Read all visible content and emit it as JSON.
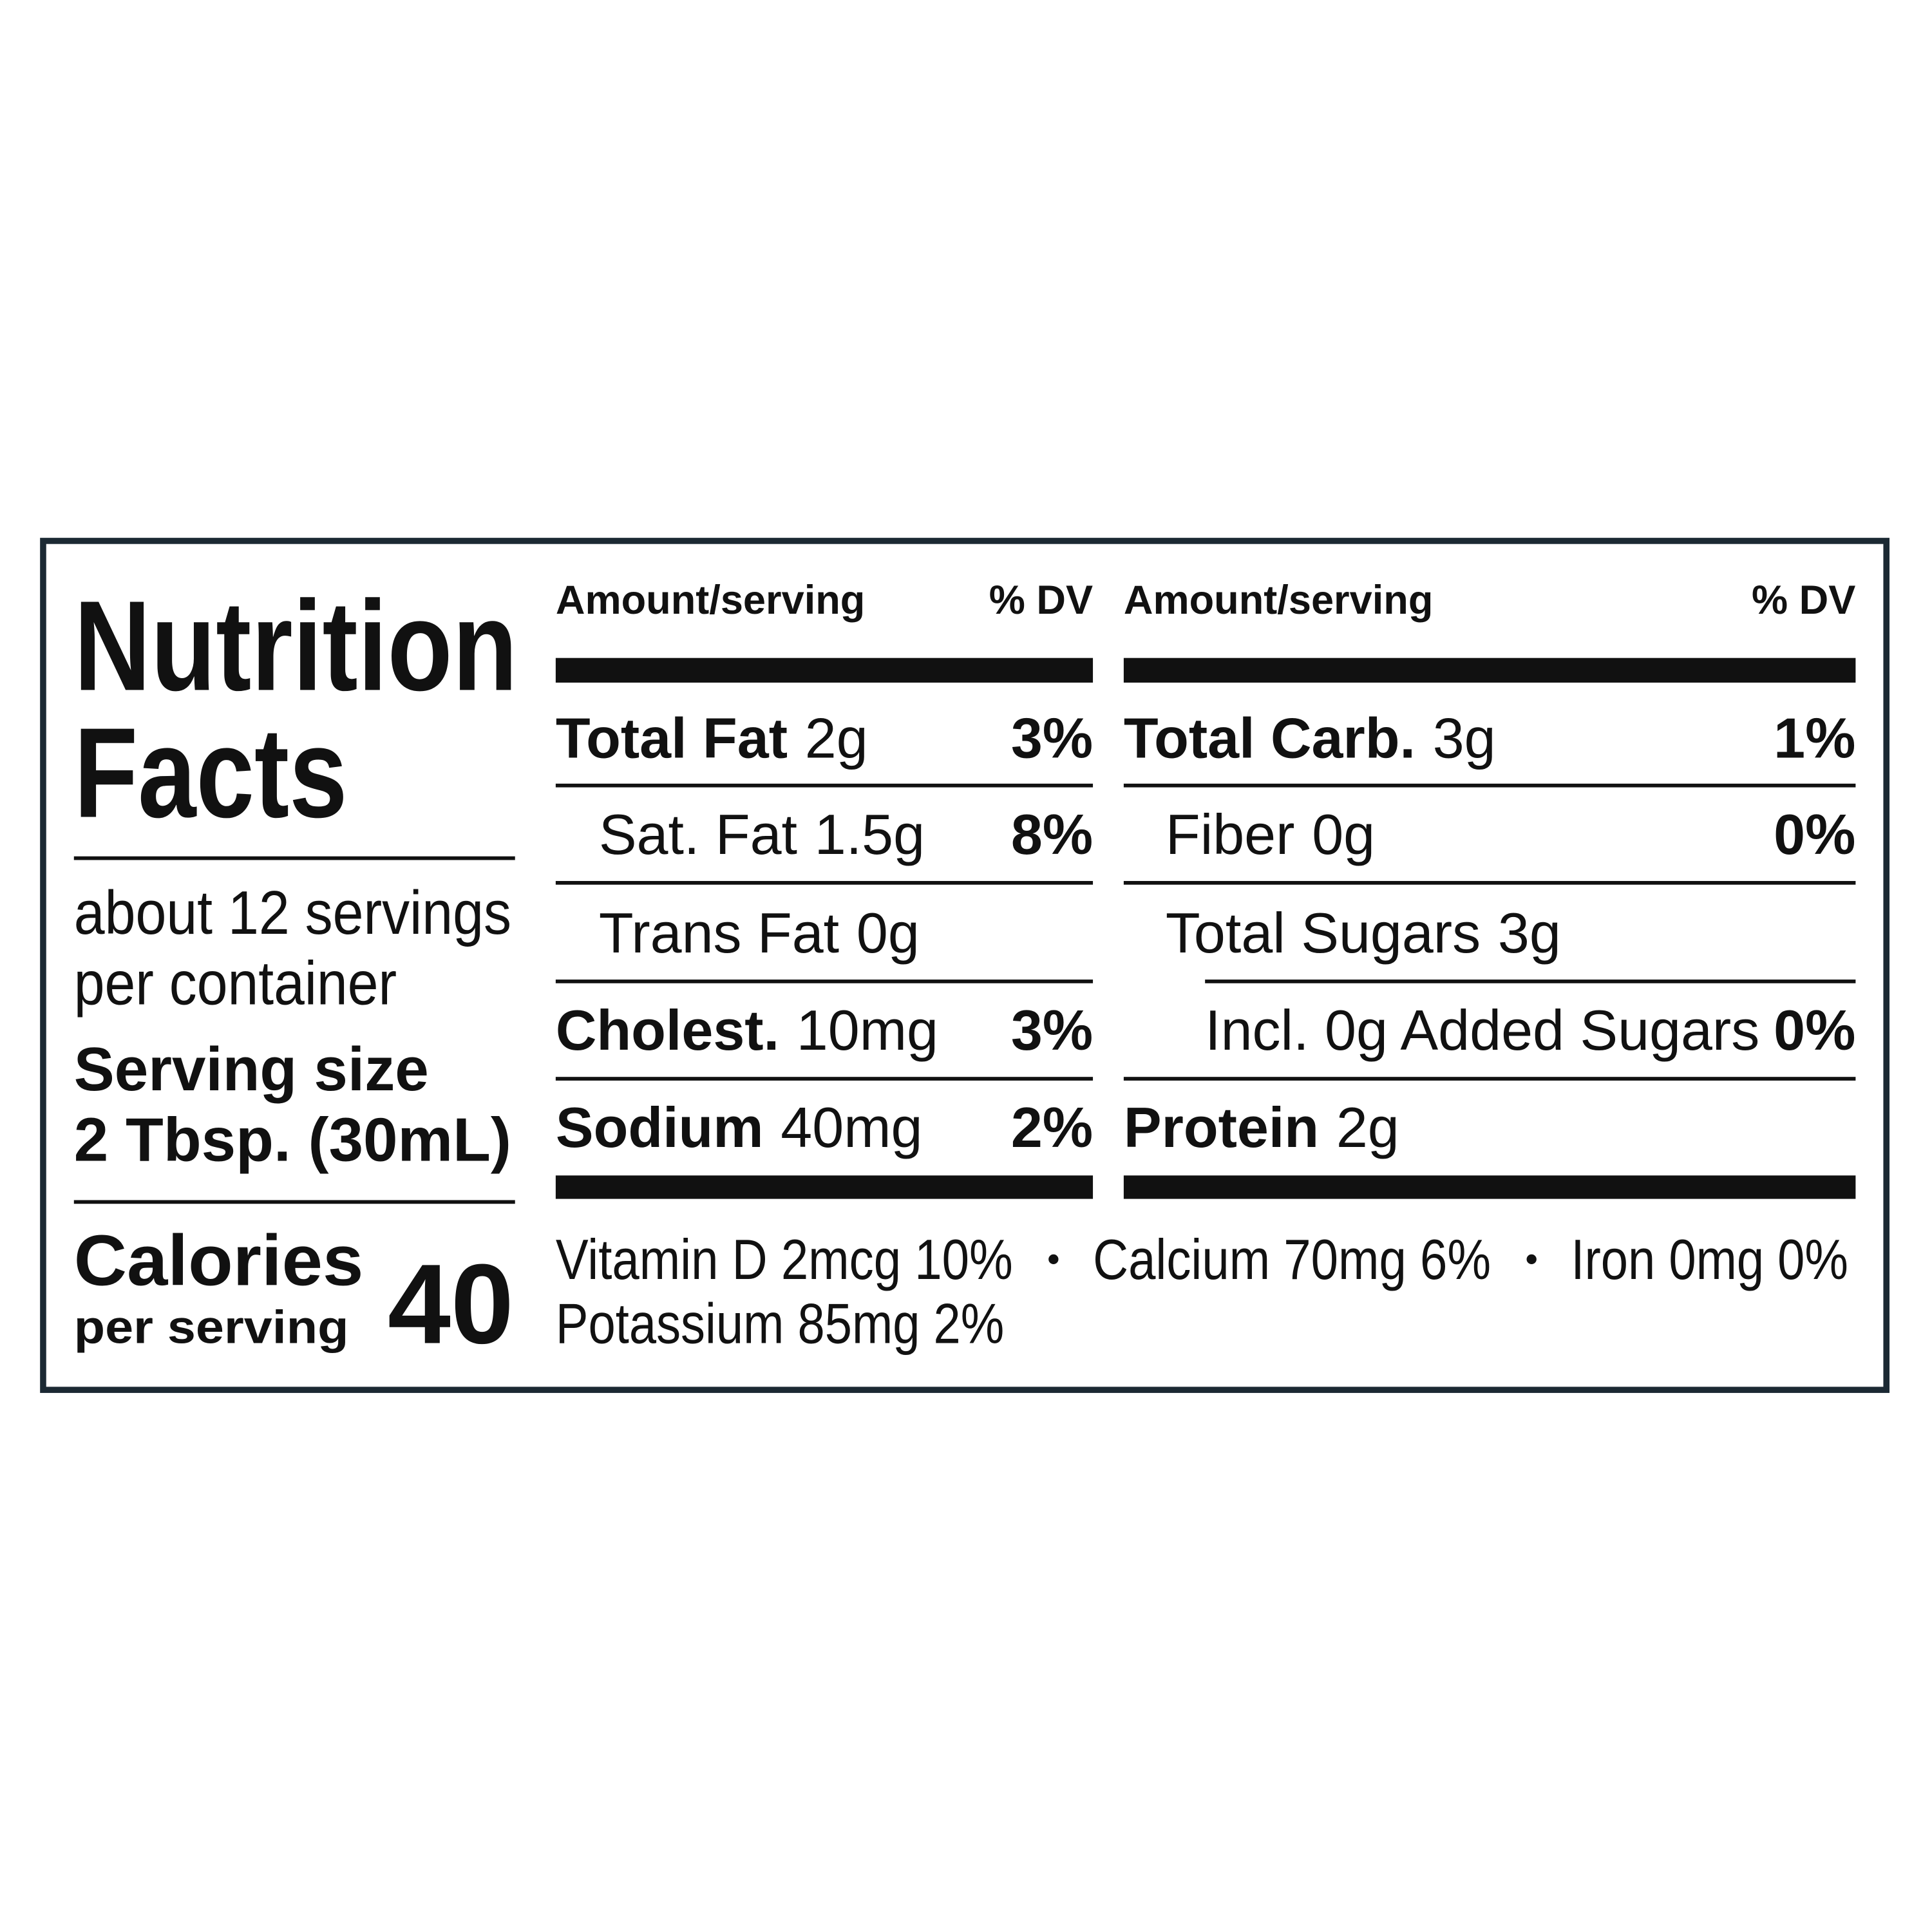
{
  "title": {
    "line1": "Nutrition",
    "line2": "Facts"
  },
  "servings": {
    "line1": "about 12 servings",
    "line2": "per container"
  },
  "serving_size": {
    "label": "Serving size",
    "value": "2 Tbsp. (30mL)"
  },
  "calories": {
    "label": "Calories",
    "sublabel": "per serving",
    "value": "40"
  },
  "columns": [
    {
      "header": {
        "amount": "Amount/serving",
        "dv": "% DV"
      },
      "rows": [
        {
          "name": "Total Fat",
          "amount": "2g",
          "dv": "3%"
        },
        {
          "name": "Sat. Fat",
          "amount": "1.5g",
          "dv": "8%"
        },
        {
          "name": "Trans Fat",
          "amount": "0g"
        },
        {
          "name": "Cholest.",
          "amount": "10mg",
          "dv": "3%"
        },
        {
          "name": "Sodium",
          "amount": "40mg",
          "dv": "2%"
        }
      ]
    },
    {
      "header": {
        "amount": "Amount/serving",
        "dv": "% DV"
      },
      "rows": [
        {
          "name": "Total Carb.",
          "amount": "3g",
          "dv": "1%"
        },
        {
          "name": "Fiber",
          "amount": "0g",
          "dv": "0%"
        },
        {
          "name": "Total Sugars",
          "amount": "3g"
        },
        {
          "name": "Incl. 0g Added Sugars",
          "dv": "0%"
        },
        {
          "name": "Protein",
          "amount": "2g"
        }
      ]
    }
  ],
  "vitamins": [
    "Vitamin D 2mcg 10%",
    "Calcium 70mg 6%",
    "Iron 0mg 0%",
    "Potassium 85mg 2%"
  ]
}
